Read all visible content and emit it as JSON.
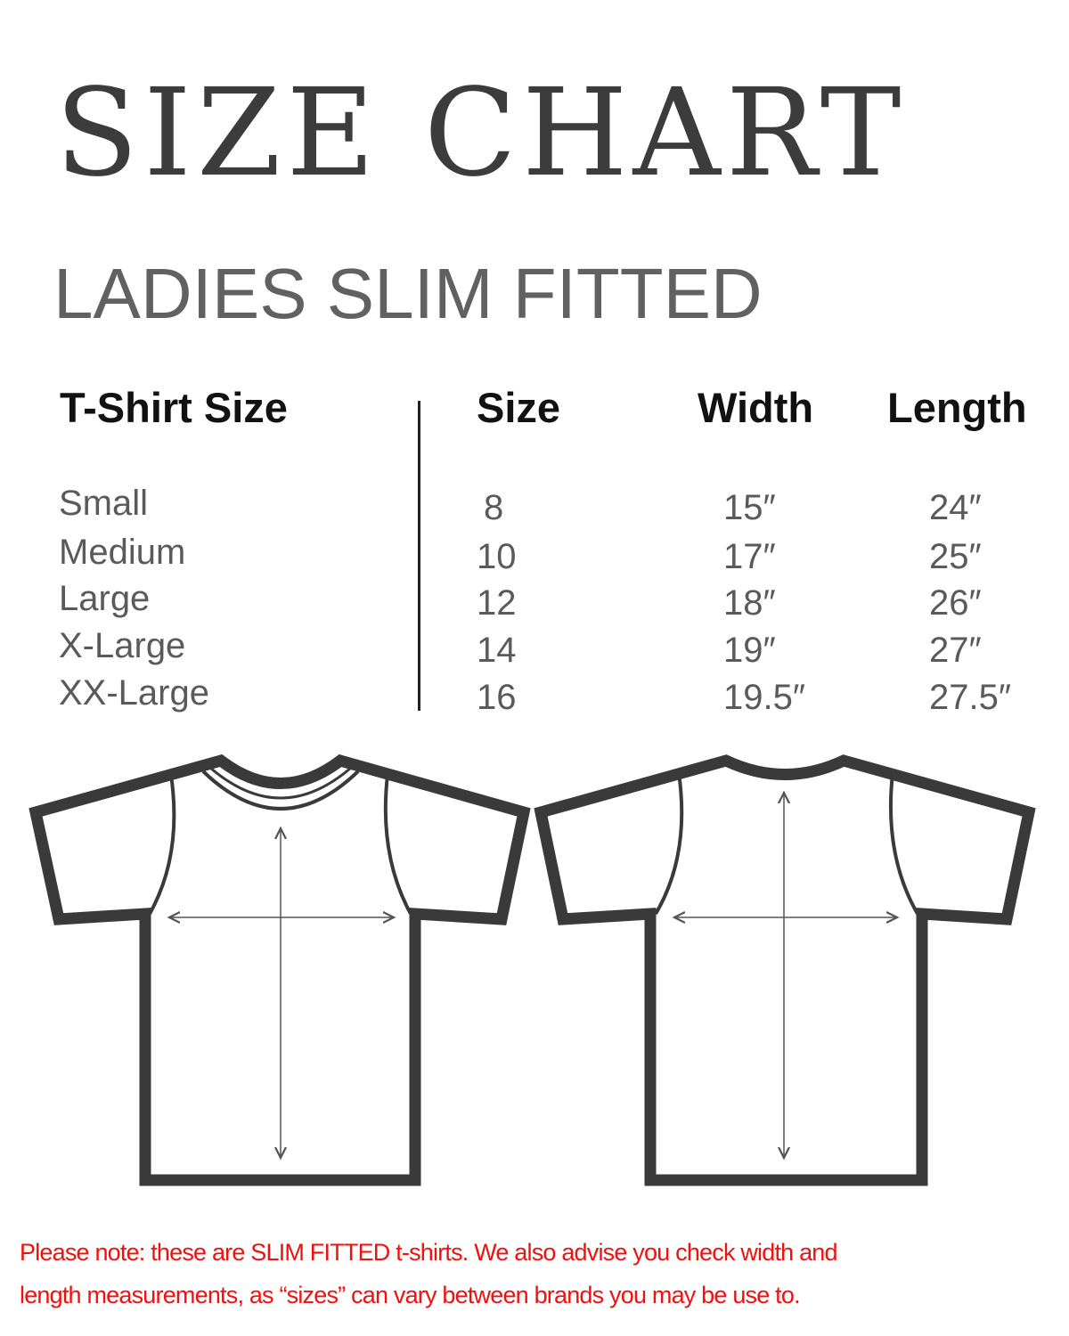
{
  "title": "SIZE CHART",
  "subtitle": "LADIES SLIM FITTED",
  "table": {
    "headers": {
      "tshirt_size": "T-Shirt Size",
      "size": "Size",
      "width": "Width",
      "length": "Length"
    },
    "rows": [
      {
        "label": "Small",
        "size": "8",
        "width": "15″",
        "length": "24″"
      },
      {
        "label": "Medium",
        "size": "10",
        "width": "17″",
        "length": "25″"
      },
      {
        "label": "Large",
        "size": "12",
        "width": "18″",
        "length": "26″"
      },
      {
        "label": "X-Large",
        "size": "14",
        "width": "19″",
        "length": "27″"
      },
      {
        "label": "XX-Large",
        "size": "16",
        "width": "19.5″",
        "length": "27.5″"
      }
    ]
  },
  "note": {
    "line1": "Please note: these are SLIM FITTED t-shirts. We also advise you check width and",
    "line2": "length measurements, as  “sizes” can vary between brands you may be use to."
  },
  "colors": {
    "outline": "#3a3a3a",
    "note": "#f01010"
  }
}
